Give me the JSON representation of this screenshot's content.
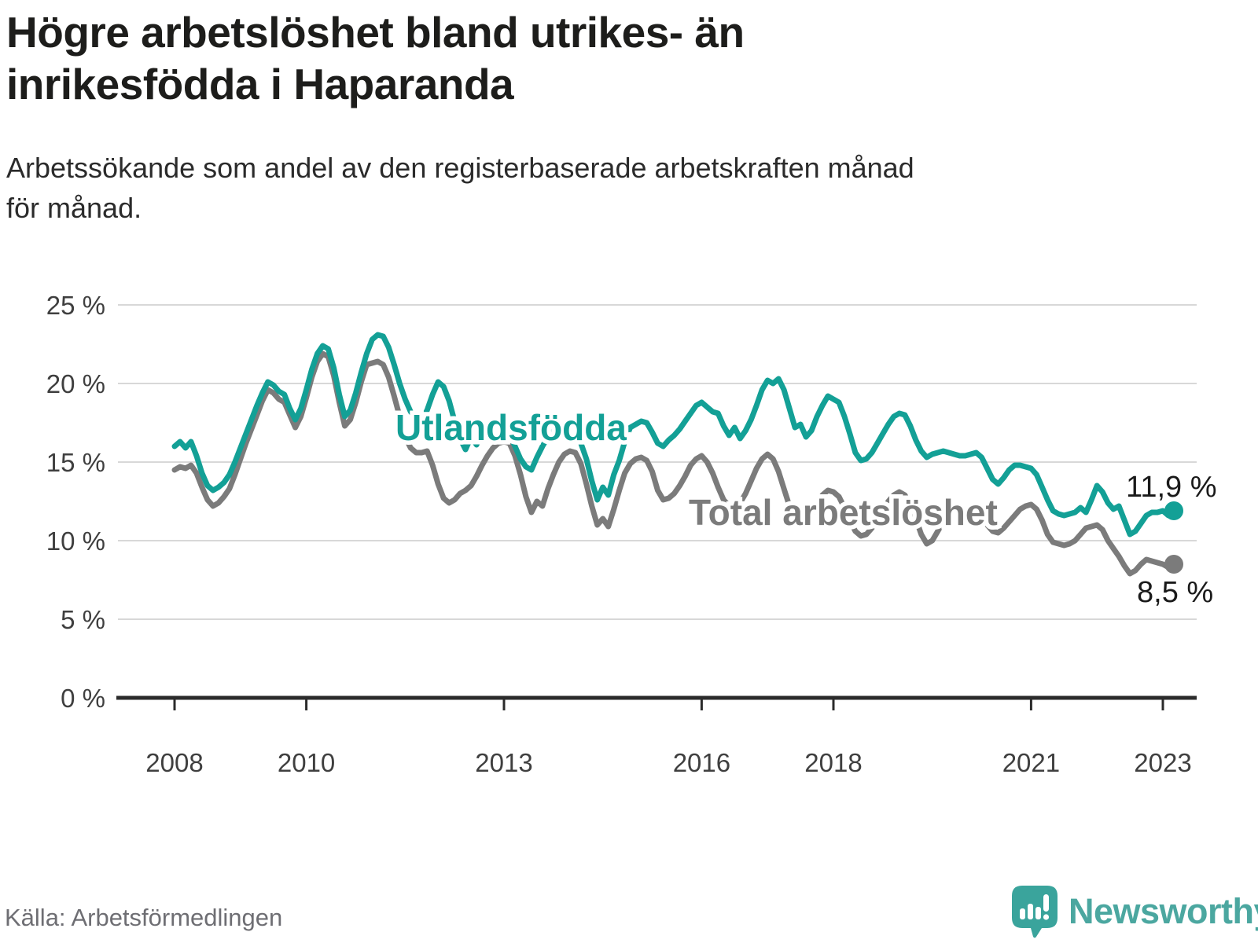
{
  "header": {
    "title": "Högre arbetslöshet bland utrikes- än inrikesfödda i Haparanda",
    "title_lines": [
      "Högre arbetslöshet bland utrikes- än",
      "inrikesfödda i Haparanda"
    ],
    "subtitle": "Arbetssökande som andel av den registerbaserade arbetskraften månad för månad.",
    "subtitle_lines": [
      "Arbetssökande som andel av den registerbaserade arbetskraften månad",
      "för månad."
    ]
  },
  "footer": {
    "source": "Källa: Arbetsförmedlingen",
    "logo_text": "Newsworthy"
  },
  "colors": {
    "accent_teal": "#13a096",
    "series_gray": "#7b7b7b",
    "grid": "#d8d8d8",
    "axis": "#2b2b2b",
    "axis_text": "#3f3f3f",
    "title_text": "#1d1d1b",
    "end_label_text": "#1a1a1a",
    "logo_teal": "#3aa49c",
    "logo_text_teal": "#4ba7a0",
    "source_text": "#6e6e73"
  },
  "chart_data": {
    "type": "line",
    "title": "Högre arbetslöshet bland utrikes- än inrikesfödda i Haparanda",
    "xlabel": "",
    "ylabel": "Arbetssökande som andel av den registerbaserade arbetskraften",
    "unit": "%",
    "x_start": "2008-01",
    "x_end": "2023-03",
    "frequency": "monthly",
    "ylim": [
      0,
      25
    ],
    "grid": "horizontal",
    "legend_position": "inline-labels",
    "y_ticks": [
      0,
      5,
      10,
      15,
      20,
      25
    ],
    "y_tick_labels": [
      "0 %",
      "5 %",
      "10 %",
      "15 %",
      "20 %",
      "25 %"
    ],
    "x_tick_years": [
      2008,
      2010,
      2013,
      2016,
      2018,
      2021,
      2023
    ],
    "x_tick_labels": [
      "2008",
      "2010",
      "2013",
      "2016",
      "2018",
      "2021",
      "2023"
    ],
    "series": [
      {
        "name": "Utlandsfödda",
        "color": "#13a096",
        "end_label": "11,9 %",
        "end_value": 11.9,
        "values": [
          16.0,
          16.3,
          15.9,
          16.3,
          15.4,
          14.3,
          13.5,
          13.2,
          13.4,
          13.7,
          14.2,
          15.0,
          15.9,
          16.8,
          17.7,
          18.6,
          19.4,
          20.1,
          19.9,
          19.5,
          19.3,
          18.4,
          17.7,
          18.4,
          19.6,
          20.9,
          21.9,
          22.4,
          22.2,
          21.0,
          19.3,
          17.9,
          18.3,
          19.4,
          20.7,
          21.9,
          22.8,
          23.1,
          23.0,
          22.3,
          21.2,
          20.0,
          19.0,
          18.2,
          17.8,
          17.7,
          18.3,
          19.3,
          20.1,
          19.8,
          18.9,
          17.6,
          16.5,
          15.8,
          16.6,
          16.1,
          17.0,
          16.7,
          17.0,
          17.3,
          17.2,
          16.8,
          16.0,
          15.2,
          14.7,
          14.5,
          15.3,
          16.0,
          16.6,
          17.0,
          17.0,
          17.1,
          17.1,
          16.9,
          16.2,
          15.2,
          13.8,
          12.6,
          13.4,
          12.9,
          14.2,
          15.1,
          16.3,
          17.2,
          17.4,
          17.6,
          17.5,
          16.9,
          16.2,
          16.0,
          16.4,
          16.7,
          17.1,
          17.6,
          18.1,
          18.6,
          18.8,
          18.5,
          18.2,
          18.1,
          17.3,
          16.7,
          17.2,
          16.5,
          17.0,
          17.7,
          18.6,
          19.6,
          20.2,
          20.0,
          20.3,
          19.6,
          18.4,
          17.2,
          17.4,
          16.6,
          17.0,
          17.9,
          18.6,
          19.2,
          19.0,
          18.8,
          17.9,
          16.8,
          15.6,
          15.1,
          15.2,
          15.6,
          16.2,
          16.8,
          17.4,
          17.9,
          18.1,
          18.0,
          17.3,
          16.4,
          15.7,
          15.3,
          15.5,
          15.6,
          15.7,
          15.6,
          15.5,
          15.4,
          15.4,
          15.5,
          15.6,
          15.3,
          14.6,
          13.9,
          13.6,
          14.0,
          14.5,
          14.8,
          14.8,
          14.7,
          14.6,
          14.2,
          13.4,
          12.6,
          11.9,
          11.7,
          11.6,
          11.7,
          11.8,
          12.1,
          11.8,
          12.6,
          13.5,
          13.1,
          12.4,
          12.0,
          12.2,
          11.3,
          10.4,
          10.6,
          11.1,
          11.6,
          11.8,
          11.8,
          11.9,
          11.6,
          11.9
        ]
      },
      {
        "name": "Total arbetslöshet",
        "color": "#7b7b7b",
        "end_label": "8,5 %",
        "end_value": 8.5,
        "values": [
          14.5,
          14.7,
          14.6,
          14.8,
          14.3,
          13.4,
          12.6,
          12.2,
          12.4,
          12.8,
          13.3,
          14.2,
          15.2,
          16.2,
          17.1,
          18.0,
          18.9,
          19.6,
          19.4,
          19.0,
          18.8,
          18.0,
          17.2,
          17.9,
          19.1,
          20.4,
          21.4,
          21.9,
          21.7,
          20.5,
          18.8,
          17.3,
          17.7,
          18.8,
          20.1,
          21.2,
          21.3,
          21.4,
          21.2,
          20.4,
          19.2,
          17.9,
          16.6,
          15.9,
          15.6,
          15.6,
          15.7,
          14.8,
          13.6,
          12.7,
          12.4,
          12.6,
          13.0,
          13.2,
          13.5,
          14.1,
          14.8,
          15.4,
          15.9,
          16.2,
          16.3,
          16.2,
          15.4,
          14.2,
          12.8,
          11.8,
          12.5,
          12.2,
          13.3,
          14.2,
          15.0,
          15.5,
          15.7,
          15.6,
          14.9,
          13.6,
          12.2,
          11.0,
          11.4,
          10.9,
          12.0,
          13.2,
          14.3,
          14.9,
          15.2,
          15.3,
          15.1,
          14.4,
          13.2,
          12.6,
          12.7,
          13.0,
          13.5,
          14.1,
          14.8,
          15.2,
          15.4,
          15.0,
          14.3,
          13.4,
          12.6,
          12.2,
          12.1,
          12.4,
          13.0,
          13.8,
          14.6,
          15.2,
          15.5,
          15.2,
          14.4,
          13.3,
          12.2,
          11.6,
          11.5,
          11.9,
          11.7,
          12.3,
          12.9,
          13.2,
          13.1,
          12.8,
          12.1,
          11.3,
          10.6,
          10.3,
          10.4,
          10.8,
          11.3,
          11.9,
          12.5,
          12.9,
          13.1,
          12.9,
          12.3,
          11.4,
          10.4,
          9.8,
          10.0,
          10.6,
          11.2,
          11.4,
          11.5,
          11.4,
          11.5,
          11.7,
          11.7,
          11.4,
          11.0,
          10.6,
          10.5,
          10.8,
          11.2,
          11.6,
          12.0,
          12.2,
          12.3,
          12.0,
          11.3,
          10.4,
          9.9,
          9.8,
          9.7,
          9.8,
          10.0,
          10.4,
          10.8,
          10.9,
          11.0,
          10.7,
          10.0,
          9.5,
          9.0,
          8.4,
          7.9,
          8.1,
          8.5,
          8.8,
          8.7,
          8.6,
          8.5,
          8.3,
          8.5
        ]
      }
    ]
  }
}
